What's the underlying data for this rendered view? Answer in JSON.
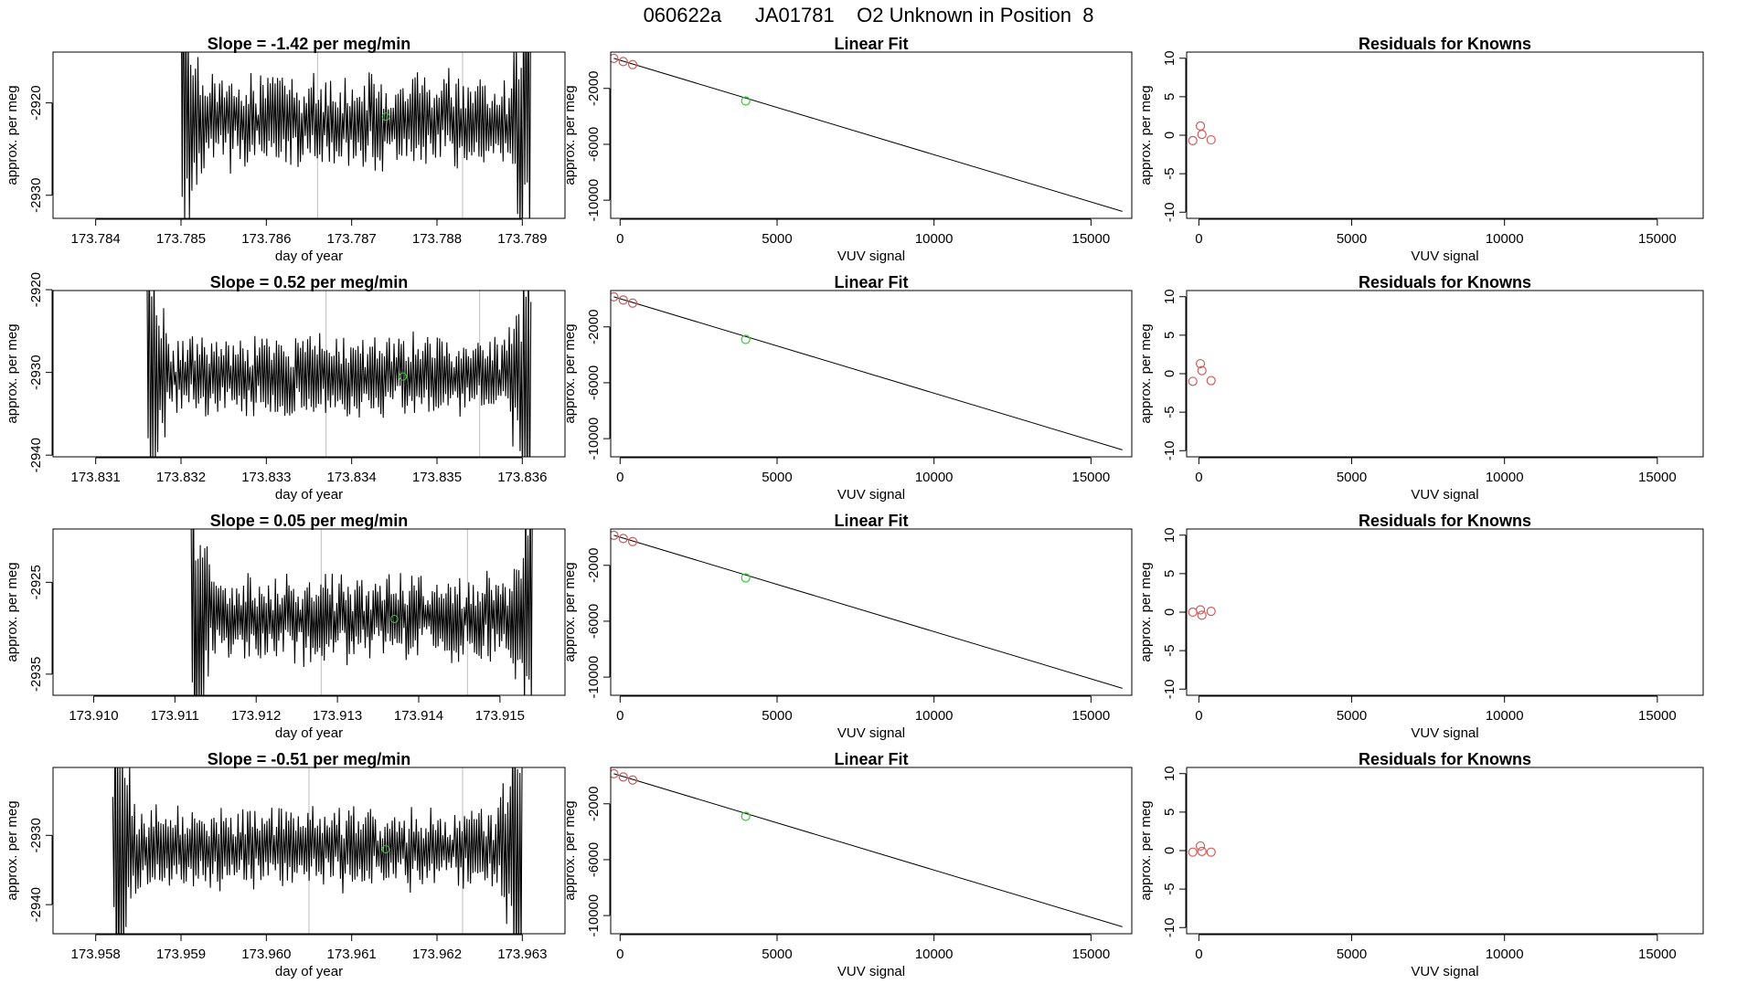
{
  "main_title": "060622a      JA01781    O2 Unknown in Position  8",
  "colors": {
    "line": "#000000",
    "known_point": "#cd5c5c",
    "unknown_point": "#32cd32",
    "gap_line": "#bebebe"
  },
  "chart_data": [
    {
      "type": "line",
      "row": 1,
      "col": 1,
      "panel": "timeseries",
      "title": "Slope =  -1.42  per meg/min",
      "xlabel": "day of year",
      "ylabel": "approx. per meg",
      "xlim": [
        173.7835,
        173.7895
      ],
      "ylim": [
        -2932.5,
        -2914.5
      ],
      "xticks": [
        "173.784",
        "173.785",
        "173.786",
        "173.787",
        "173.788",
        "173.789"
      ],
      "xtick_values": [
        173.784,
        173.785,
        173.786,
        173.787,
        173.788,
        173.789
      ],
      "yticks": [
        "-2920",
        "-2930"
      ],
      "ytick_values": [
        -2920,
        -2930
      ],
      "gaps": [
        173.7866,
        173.7883
      ],
      "series_start": 173.785,
      "series_end": 173.7891,
      "series_mean": -2922,
      "series_amp": 4.5,
      "cycles": 145,
      "unknown_point": {
        "x": 173.7874,
        "y": -2921.5
      }
    },
    {
      "type": "scatter",
      "row": 1,
      "col": 2,
      "panel": "fit",
      "title": "Linear Fit",
      "xlabel": "VUV signal",
      "ylabel": "approx. per meg",
      "xlim": [
        -300,
        16300
      ],
      "ylim": [
        -11300,
        600
      ],
      "xticks": [
        "0",
        "5000",
        "10000",
        "15000"
      ],
      "xtick_values": [
        0,
        5000,
        10000,
        15000
      ],
      "yticks": [
        "-2000",
        "-6000",
        "-10000"
      ],
      "ytick_values": [
        -2000,
        -6000,
        -10000
      ],
      "fit_line": {
        "x": [
          -200,
          16000
        ],
        "y": [
          150,
          -10800
        ]
      },
      "knowns": [
        {
          "x": -200,
          "y": 150
        },
        {
          "x": 100,
          "y": -80
        },
        {
          "x": 400,
          "y": -300
        }
      ],
      "unknown": {
        "x": 4000,
        "y": -2900
      }
    },
    {
      "type": "scatter",
      "row": 1,
      "col": 3,
      "panel": "residuals",
      "title": "Residuals for Knowns",
      "xlabel": "VUV signal",
      "ylabel": "approx. per meg",
      "xlim": [
        -400,
        16500
      ],
      "ylim": [
        -10.8,
        10.8
      ],
      "xticks": [
        "0",
        "5000",
        "10000",
        "15000"
      ],
      "xtick_values": [
        0,
        5000,
        10000,
        15000
      ],
      "yticks": [
        "10",
        "5",
        "0",
        "-5",
        "-10"
      ],
      "ytick_values": [
        10,
        5,
        0,
        -5,
        -10
      ],
      "points": [
        {
          "x": -200,
          "y": -0.7
        },
        {
          "x": 50,
          "y": 1.2
        },
        {
          "x": 100,
          "y": 0.1
        },
        {
          "x": 400,
          "y": -0.6
        }
      ]
    },
    {
      "type": "line",
      "row": 2,
      "col": 1,
      "panel": "timeseries",
      "title": "Slope =  0.52  per meg/min",
      "xlabel": "day of year",
      "ylabel": "approx. per meg",
      "xlim": [
        173.8305,
        173.8365
      ],
      "ylim": [
        -2940.2,
        -2920.1
      ],
      "xticks": [
        "173.831",
        "173.832",
        "173.833",
        "173.834",
        "173.835",
        "173.836"
      ],
      "xtick_values": [
        173.831,
        173.832,
        173.833,
        173.834,
        173.835,
        173.836
      ],
      "yticks": [
        "-2920",
        "-2930",
        "-2940"
      ],
      "ytick_values": [
        -2920,
        -2930,
        -2940
      ],
      "gaps": [
        173.8337,
        173.8355
      ],
      "series_start": 173.8316,
      "series_end": 173.8361,
      "series_mean": -2930.5,
      "series_amp": 4.2,
      "cycles": 160,
      "unknown_point": {
        "x": 173.8346,
        "y": -2930.5
      }
    },
    {
      "type": "scatter",
      "row": 2,
      "col": 2,
      "panel": "fit",
      "title": "Linear Fit",
      "xlabel": "VUV signal",
      "ylabel": "approx. per meg",
      "xlim": [
        -300,
        16300
      ],
      "ylim": [
        -11300,
        600
      ],
      "xticks": [
        "0",
        "5000",
        "10000",
        "15000"
      ],
      "xtick_values": [
        0,
        5000,
        10000,
        15000
      ],
      "yticks": [
        "-2000",
        "-6000",
        "-10000"
      ],
      "ytick_values": [
        -2000,
        -6000,
        -10000
      ],
      "fit_line": {
        "x": [
          -200,
          16000
        ],
        "y": [
          150,
          -10800
        ]
      },
      "knowns": [
        {
          "x": -200,
          "y": 150
        },
        {
          "x": 100,
          "y": -80
        },
        {
          "x": 400,
          "y": -300
        }
      ],
      "unknown": {
        "x": 4000,
        "y": -2900
      }
    },
    {
      "type": "scatter",
      "row": 2,
      "col": 3,
      "panel": "residuals",
      "title": "Residuals for Knowns",
      "xlabel": "VUV signal",
      "ylabel": "approx. per meg",
      "xlim": [
        -400,
        16500
      ],
      "ylim": [
        -10.8,
        10.8
      ],
      "xticks": [
        "0",
        "5000",
        "10000",
        "15000"
      ],
      "xtick_values": [
        0,
        5000,
        10000,
        15000
      ],
      "yticks": [
        "10",
        "5",
        "0",
        "-5",
        "-10"
      ],
      "ytick_values": [
        10,
        5,
        0,
        -5,
        -10
      ],
      "points": [
        {
          "x": -200,
          "y": -1.0
        },
        {
          "x": 50,
          "y": 1.3
        },
        {
          "x": 100,
          "y": 0.4
        },
        {
          "x": 400,
          "y": -0.9
        }
      ]
    },
    {
      "type": "line",
      "row": 3,
      "col": 1,
      "panel": "timeseries",
      "title": "Slope =  0.05  per meg/min",
      "xlabel": "day of year",
      "ylabel": "approx. per meg",
      "xlim": [
        173.9095,
        173.9158
      ],
      "ylim": [
        -2937.3,
        -2919.2
      ],
      "xticks": [
        "173.910",
        "173.911",
        "173.912",
        "173.913",
        "173.914",
        "173.915"
      ],
      "xtick_values": [
        173.91,
        173.911,
        173.912,
        173.913,
        173.914,
        173.915
      ],
      "yticks": [
        "-2925",
        "-2935"
      ],
      "ytick_values": [
        -2925,
        -2935
      ],
      "gaps": [
        173.9128,
        173.9146
      ],
      "series_start": 173.9112,
      "series_end": 173.9154,
      "series_mean": -2929,
      "series_amp": 4.0,
      "cycles": 150,
      "unknown_point": {
        "x": 173.9137,
        "y": -2929
      }
    },
    {
      "type": "scatter",
      "row": 3,
      "col": 2,
      "panel": "fit",
      "title": "Linear Fit",
      "xlabel": "VUV signal",
      "ylabel": "approx. per meg",
      "xlim": [
        -300,
        16300
      ],
      "ylim": [
        -11300,
        600
      ],
      "xticks": [
        "0",
        "5000",
        "10000",
        "15000"
      ],
      "xtick_values": [
        0,
        5000,
        10000,
        15000
      ],
      "yticks": [
        "-2000",
        "-6000",
        "-10000"
      ],
      "ytick_values": [
        -2000,
        -6000,
        -10000
      ],
      "fit_line": {
        "x": [
          -200,
          16000
        ],
        "y": [
          150,
          -10800
        ]
      },
      "knowns": [
        {
          "x": -200,
          "y": 150
        },
        {
          "x": 100,
          "y": -80
        },
        {
          "x": 400,
          "y": -300
        }
      ],
      "unknown": {
        "x": 4000,
        "y": -2900
      }
    },
    {
      "type": "scatter",
      "row": 3,
      "col": 3,
      "panel": "residuals",
      "title": "Residuals for Knowns",
      "xlabel": "VUV signal",
      "ylabel": "approx. per meg",
      "xlim": [
        -400,
        16500
      ],
      "ylim": [
        -10.8,
        10.8
      ],
      "xticks": [
        "0",
        "5000",
        "10000",
        "15000"
      ],
      "xtick_values": [
        0,
        5000,
        10000,
        15000
      ],
      "yticks": [
        "10",
        "5",
        "0",
        "-5",
        "-10"
      ],
      "ytick_values": [
        10,
        5,
        0,
        -5,
        -10
      ],
      "points": [
        {
          "x": -200,
          "y": 0.0
        },
        {
          "x": 50,
          "y": 0.3
        },
        {
          "x": 100,
          "y": -0.4
        },
        {
          "x": 400,
          "y": 0.1
        }
      ]
    },
    {
      "type": "line",
      "row": 4,
      "col": 1,
      "panel": "timeseries",
      "title": "Slope =  -0.51  per meg/min",
      "xlabel": "day of year",
      "ylabel": "approx. per meg",
      "xlim": [
        173.9575,
        173.9635
      ],
      "ylim": [
        -2944.2,
        -2920.2
      ],
      "xticks": [
        "173.958",
        "173.959",
        "173.960",
        "173.961",
        "173.962",
        "173.963"
      ],
      "xtick_values": [
        173.958,
        173.959,
        173.96,
        173.961,
        173.962,
        173.963
      ],
      "yticks": [
        "-2930",
        "-2940"
      ],
      "ytick_values": [
        -2930,
        -2940
      ],
      "gaps": [
        173.9605,
        173.9623
      ],
      "series_start": 173.9582,
      "series_end": 173.963,
      "series_mean": -2932,
      "series_amp": 5.0,
      "cycles": 170,
      "unknown_point": {
        "x": 173.9614,
        "y": -2932
      }
    },
    {
      "type": "scatter",
      "row": 4,
      "col": 2,
      "panel": "fit",
      "title": "Linear Fit",
      "xlabel": "VUV signal",
      "ylabel": "approx. per meg",
      "xlim": [
        -300,
        16300
      ],
      "ylim": [
        -11300,
        600
      ],
      "xticks": [
        "0",
        "5000",
        "10000",
        "15000"
      ],
      "xtick_values": [
        0,
        5000,
        10000,
        15000
      ],
      "yticks": [
        "-2000",
        "-6000",
        "-10000"
      ],
      "ytick_values": [
        -2000,
        -6000,
        -10000
      ],
      "fit_line": {
        "x": [
          -200,
          16000
        ],
        "y": [
          150,
          -10800
        ]
      },
      "knowns": [
        {
          "x": -200,
          "y": 150
        },
        {
          "x": 100,
          "y": -80
        },
        {
          "x": 400,
          "y": -300
        }
      ],
      "unknown": {
        "x": 4000,
        "y": -2900
      }
    },
    {
      "type": "scatter",
      "row": 4,
      "col": 3,
      "panel": "residuals",
      "title": "Residuals for Knowns",
      "xlabel": "VUV signal",
      "ylabel": "approx. per meg",
      "xlim": [
        -400,
        16500
      ],
      "ylim": [
        -10.8,
        10.8
      ],
      "xticks": [
        "0",
        "5000",
        "10000",
        "15000"
      ],
      "xtick_values": [
        0,
        5000,
        10000,
        15000
      ],
      "yticks": [
        "10",
        "5",
        "0",
        "-5",
        "-10"
      ],
      "ytick_values": [
        10,
        5,
        0,
        -5,
        -10
      ],
      "points": [
        {
          "x": -200,
          "y": -0.2
        },
        {
          "x": 50,
          "y": 0.6
        },
        {
          "x": 100,
          "y": -0.1
        },
        {
          "x": 400,
          "y": -0.2
        }
      ]
    }
  ]
}
